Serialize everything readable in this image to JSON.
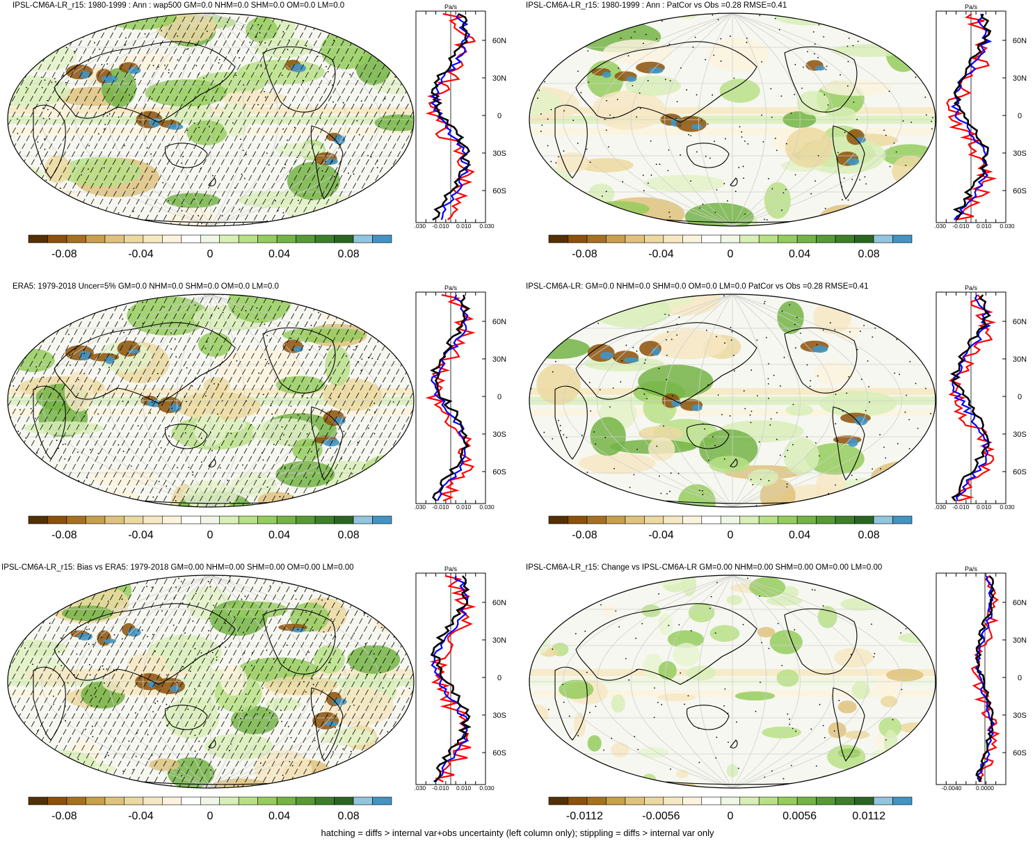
{
  "panels": [
    {
      "title": "IPSL-CM6A-LR_r15: 1980-1999 : Ann : wap500 GM=0.0 NHM=0.0 SHM=0.0 OM=0.0 LM=0.0",
      "profile_unit": "Pa/s",
      "profile_xticks": [
        "-0.030",
        "-0.010",
        "0.010",
        "0.030"
      ],
      "colorbar_labels": [
        "-0.08",
        "-0.04",
        "0",
        "0.04",
        "0.08"
      ],
      "hatching": true
    },
    {
      "title": "IPSL-CM6A-LR_r15: 1980-1999 : Ann : PatCor vs Obs =0.28 RMSE=0.41",
      "profile_unit": "Pa/s",
      "profile_xticks": [
        "-0.030",
        "-0.010",
        "0.010",
        "0.030"
      ],
      "colorbar_labels": [
        "-0.08",
        "-0.04",
        "0",
        "0.04",
        "0.08"
      ],
      "hatching": false
    },
    {
      "title": "ERA5: 1979-2018 Uncer=5% GM=0.0 NHM=0.0 SHM=0.0 OM=0.0 LM=0.0",
      "profile_unit": "Pa/s",
      "profile_xticks": [
        "-0.030",
        "-0.010",
        "0.010",
        "0.030"
      ],
      "colorbar_labels": [
        "-0.08",
        "-0.04",
        "0",
        "0.04",
        "0.08"
      ],
      "hatching": true
    },
    {
      "title": "IPSL-CM6A-LR: GM=0.0 NHM=0.0 SHM=0.0 OM=0.0 LM=0.0 PatCor vs Obs =0.28 RMSE=0.41",
      "profile_unit": "Pa/s",
      "profile_xticks": [
        "-0.030",
        "-0.010",
        "0.010",
        "0.030"
      ],
      "colorbar_labels": [
        "-0.08",
        "-0.04",
        "0",
        "0.04",
        "0.08"
      ],
      "hatching": false
    },
    {
      "title": "IPSL-CM6A-LR_r15: Bias vs ERA5: 1979-2018 GM=0.00 NHM=0.00 SHM=0.00 OM=0.00 LM=0.00",
      "profile_unit": "Pa/s",
      "profile_xticks": [
        "-0.030",
        "-0.010",
        "0.010",
        "0.030"
      ],
      "colorbar_labels": [
        "-0.08",
        "-0.04",
        "0",
        "0.04",
        "0.08"
      ],
      "hatching": true
    },
    {
      "title": "IPSL-CM6A-LR_r15: Change vs IPSL-CM6A-LR GM=0.00 NHM=0.00 SHM=0.00 OM=0.00 LM=0.00",
      "profile_unit": "Pa/s",
      "profile_xticks": [
        "-0.0040",
        "0.0000"
      ],
      "colorbar_labels": [
        "-0.0112",
        "-0.0056",
        "0",
        "0.0056",
        "0.0112"
      ],
      "hatching": false
    }
  ],
  "latitude_labels": [
    "60N",
    "30N",
    "0",
    "30S",
    "60S"
  ],
  "colorbar_colors": [
    "#543005",
    "#8c510a",
    "#a6711f",
    "#c8a04a",
    "#dfc27d",
    "#ecd9a0",
    "#f6e8c3",
    "#fbf3de",
    "#ffffff",
    "#f0f7e6",
    "#d9efb8",
    "#b8e186",
    "#95cc5e",
    "#74b446",
    "#569a35",
    "#3d7f2a",
    "#2a6621",
    "#92c5de",
    "#4393c3"
  ],
  "footnote": "hatching = diffs > internal var+obs uncertainty (left column only); stippling = diffs > internal var only"
}
